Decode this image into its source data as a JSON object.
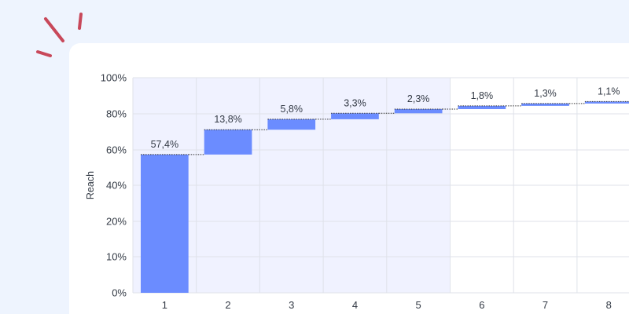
{
  "chart_data": {
    "type": "bar",
    "subtype": "waterfall",
    "categories": [
      "1",
      "2",
      "3",
      "4",
      "5",
      "6",
      "7",
      "8"
    ],
    "values": [
      57.4,
      13.8,
      5.8,
      3.3,
      2.3,
      1.8,
      1.3,
      1.1
    ],
    "value_labels": [
      "57,4%",
      "13,8%",
      "5,8%",
      "3,3%",
      "2,3%",
      "1,8%",
      "1,3%",
      "1,1%"
    ],
    "ylabel": "Reach",
    "xlabel": "",
    "ylim": [
      0,
      100
    ],
    "yticks": [
      0,
      10,
      20,
      40,
      60,
      80,
      100
    ],
    "ytick_labels": [
      "0%",
      "10%",
      "20%",
      "40%",
      "60%",
      "80%",
      "100%"
    ],
    "shaded_categories": [
      "1",
      "2",
      "3",
      "4",
      "5"
    ],
    "grid": true,
    "colors": {
      "bar": "#6b8cff",
      "shade": "#f0f2ff",
      "grid": "#dfe2ea",
      "connector": "#333333",
      "accent_marks": "#c8485a"
    }
  }
}
